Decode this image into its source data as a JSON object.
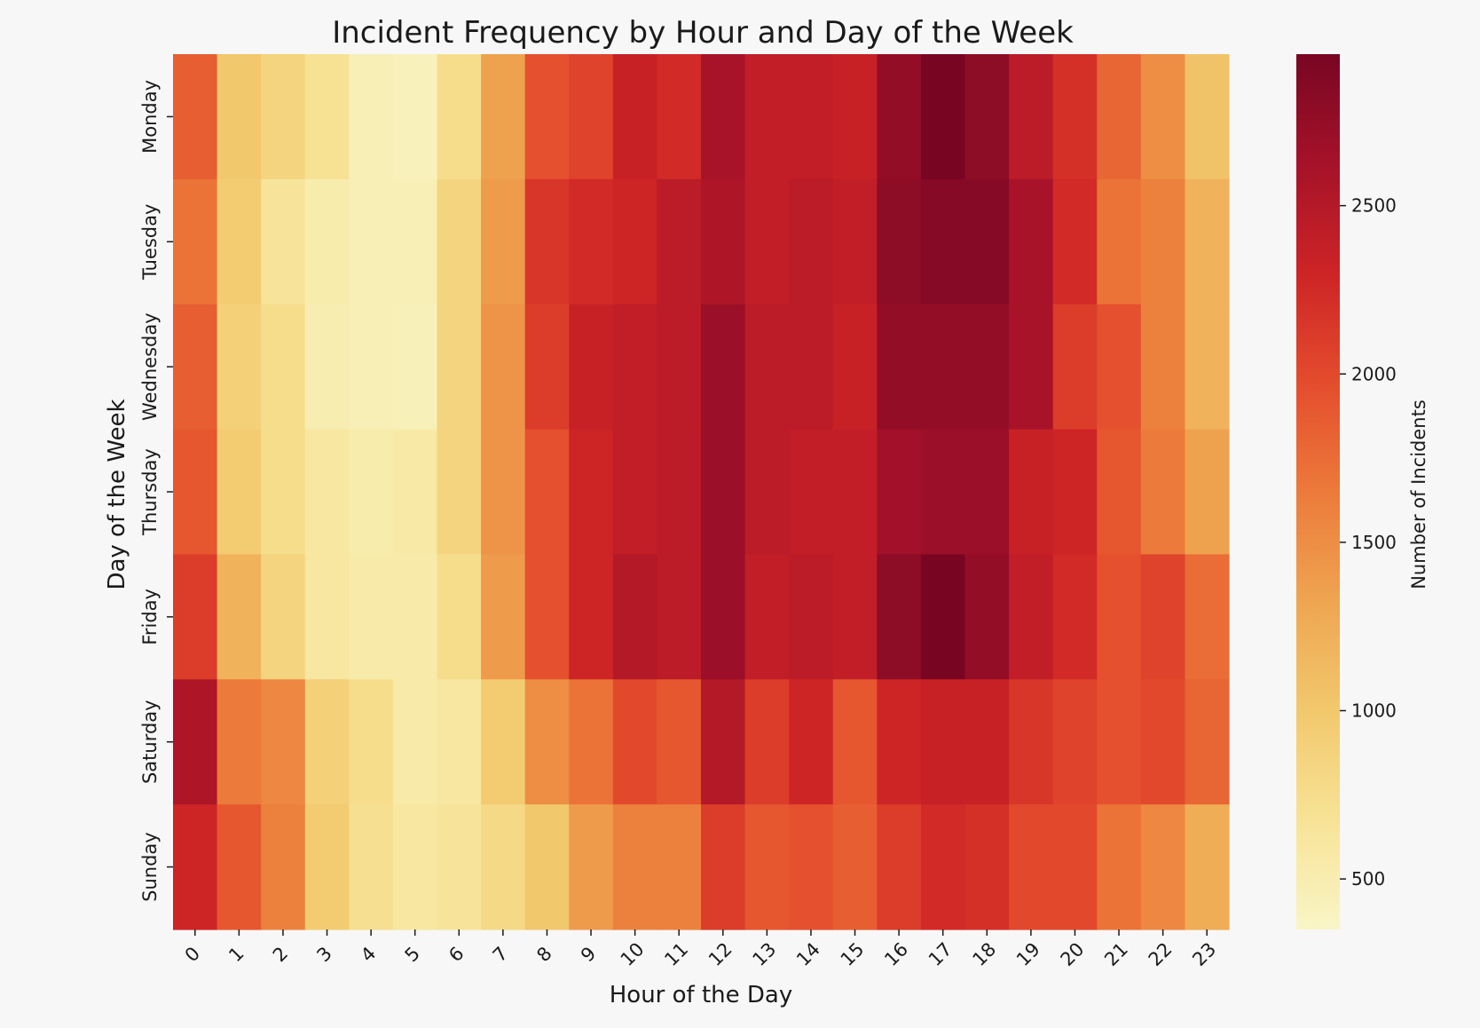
{
  "chart_data": {
    "type": "heatmap",
    "title": "Incident Frequency by Hour and Day of the Week",
    "xlabel": "Hour of the Day",
    "ylabel": "Day of the Week",
    "x": [
      "0",
      "1",
      "2",
      "3",
      "4",
      "5",
      "6",
      "7",
      "8",
      "9",
      "10",
      "11",
      "12",
      "13",
      "14",
      "15",
      "16",
      "17",
      "18",
      "19",
      "20",
      "21",
      "22",
      "23"
    ],
    "y": [
      "Monday",
      "Tuesday",
      "Wednesday",
      "Thursday",
      "Friday",
      "Saturday",
      "Sunday"
    ],
    "values": [
      [
        1850,
        1000,
        850,
        700,
        450,
        420,
        750,
        1350,
        1950,
        2050,
        2350,
        2250,
        2600,
        2400,
        2400,
        2350,
        2750,
        2950,
        2800,
        2450,
        2200,
        1800,
        1500,
        1050
      ],
      [
        1700,
        950,
        650,
        520,
        460,
        460,
        850,
        1400,
        2150,
        2250,
        2300,
        2450,
        2550,
        2400,
        2450,
        2400,
        2800,
        2850,
        2850,
        2600,
        2250,
        1700,
        1600,
        1200
      ],
      [
        1850,
        900,
        750,
        500,
        450,
        440,
        850,
        1450,
        2100,
        2350,
        2400,
        2450,
        2700,
        2450,
        2450,
        2350,
        2750,
        2750,
        2750,
        2600,
        2100,
        1950,
        1600,
        1200
      ],
      [
        1900,
        950,
        750,
        600,
        520,
        560,
        850,
        1450,
        1950,
        2300,
        2400,
        2450,
        2700,
        2450,
        2400,
        2400,
        2650,
        2700,
        2700,
        2350,
        2300,
        1900,
        1650,
        1350
      ],
      [
        2100,
        1200,
        850,
        600,
        550,
        550,
        750,
        1400,
        1950,
        2300,
        2500,
        2450,
        2700,
        2400,
        2450,
        2400,
        2800,
        2950,
        2750,
        2400,
        2250,
        1950,
        2050,
        1750
      ],
      [
        2550,
        1650,
        1550,
        900,
        750,
        550,
        600,
        950,
        1500,
        1700,
        2000,
        1900,
        2500,
        2100,
        2300,
        1900,
        2300,
        2350,
        2350,
        2150,
        2050,
        1950,
        2000,
        1800
      ],
      [
        2300,
        1900,
        1600,
        950,
        720,
        600,
        650,
        800,
        1000,
        1400,
        1600,
        1600,
        2100,
        1900,
        1950,
        1850,
        2100,
        2250,
        2200,
        2000,
        2000,
        1700,
        1550,
        1250
      ]
    ],
    "colorbar": {
      "label": "Number of Incidents",
      "ticks": [
        500,
        1000,
        1500,
        2000,
        2500
      ],
      "range": [
        350,
        2950
      ],
      "colormap": "YlOrRd",
      "colors": [
        "#f9f5c6",
        "#f7e396",
        "#f2c86c",
        "#eea550",
        "#ec7a3a",
        "#e44c2d",
        "#cd2426",
        "#a51229",
        "#780623"
      ]
    },
    "background": "#f7f7f7"
  }
}
